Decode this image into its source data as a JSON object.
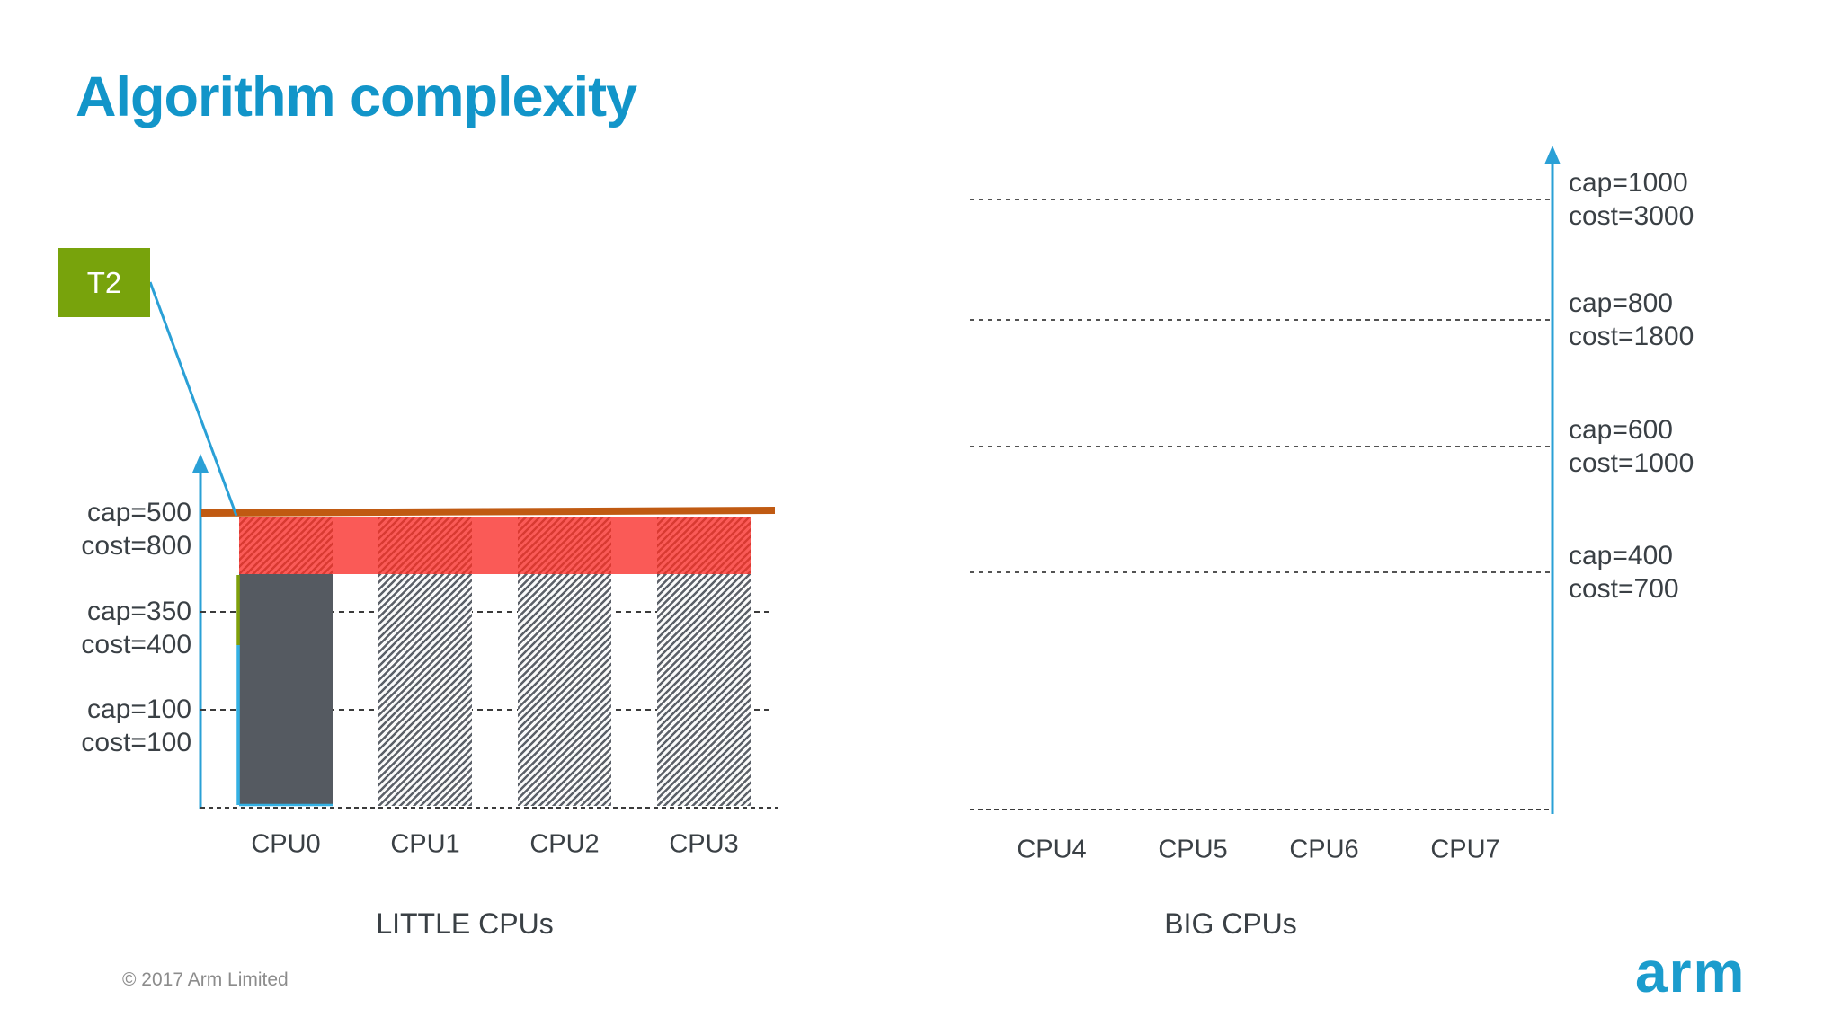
{
  "slide": {
    "title": "Algorithm complexity",
    "task_badge_label": "T2",
    "footer_copyright": "© 2017 Arm Limited",
    "logo_text": "arm"
  },
  "colors": {
    "title_blue": "#1295c9",
    "badge_green": "#78a30c",
    "axis_blue": "#2aa0d6",
    "cap_limit_orange": "#c05a12",
    "task_red": "#fa5a57",
    "task_red_hatch": "#d93a32",
    "bar_gray": "#555a61",
    "bar_hatch_gray": "#5c6169",
    "grid_dash_gray": "#3b3b3b",
    "label_text": "#3a4045",
    "footer_gray": "#8c8c8c",
    "logo_blue": "#1b9ccd",
    "marker_olive": "#7fa00b",
    "marker_cyan": "#33b1e4"
  },
  "chart_data": [
    {
      "type": "bar",
      "title": "LITTLE CPUs",
      "categories": [
        "CPU0",
        "CPU1",
        "CPU2",
        "CPU3"
      ],
      "ylim": [
        0,
        500
      ],
      "grid": "dashed horizontal lines at capacity levels, dashed baseline at 0",
      "legend_position": "none",
      "levels": [
        {
          "cap": 500,
          "cost": 800,
          "cap_label": "cap=500",
          "cost_label": "cost=800",
          "line": "solid-orange-cap-limit"
        },
        {
          "cap": 350,
          "cost": 400,
          "cap_label": "cap=350",
          "cost_label": "cost=400",
          "line": "dashed"
        },
        {
          "cap": 100,
          "cost": 100,
          "cap_label": "cap=100",
          "cost_label": "cost=100",
          "line": "dashed"
        }
      ],
      "bars": [
        {
          "category": "CPU0",
          "style": "solid",
          "util_cap": 400
        },
        {
          "category": "CPU1",
          "style": "hatched",
          "util_cap": 400
        },
        {
          "category": "CPU2",
          "style": "hatched",
          "util_cap": 400
        },
        {
          "category": "CPU3",
          "style": "hatched",
          "util_cap": 400
        }
      ],
      "task_overlay": {
        "task": "T2",
        "from_cap": 400,
        "to_cap": 500,
        "spans": "CPU0-CPU3",
        "style": "red band, hatched over bars, solid in gaps"
      },
      "cap_limit_line": {
        "at_cap": 500
      }
    },
    {
      "type": "bar",
      "title": "BIG CPUs",
      "categories": [
        "CPU4",
        "CPU5",
        "CPU6",
        "CPU7"
      ],
      "ylim": [
        0,
        1000
      ],
      "grid": "dashed horizontal lines at capacity levels, dashed baseline at 0",
      "legend_position": "none",
      "levels": [
        {
          "cap": 1000,
          "cost": 3000,
          "cap_label": "cap=1000",
          "cost_label": "cost=3000",
          "line": "dashed"
        },
        {
          "cap": 800,
          "cost": 1800,
          "cap_label": "cap=800",
          "cost_label": "cost=1800",
          "line": "dashed"
        },
        {
          "cap": 600,
          "cost": 1000,
          "cap_label": "cap=600",
          "cost_label": "cost=1000",
          "line": "dashed"
        },
        {
          "cap": 400,
          "cost": 700,
          "cap_label": "cap=400",
          "cost_label": "cost=700",
          "line": "dashed"
        }
      ],
      "bars": []
    }
  ]
}
